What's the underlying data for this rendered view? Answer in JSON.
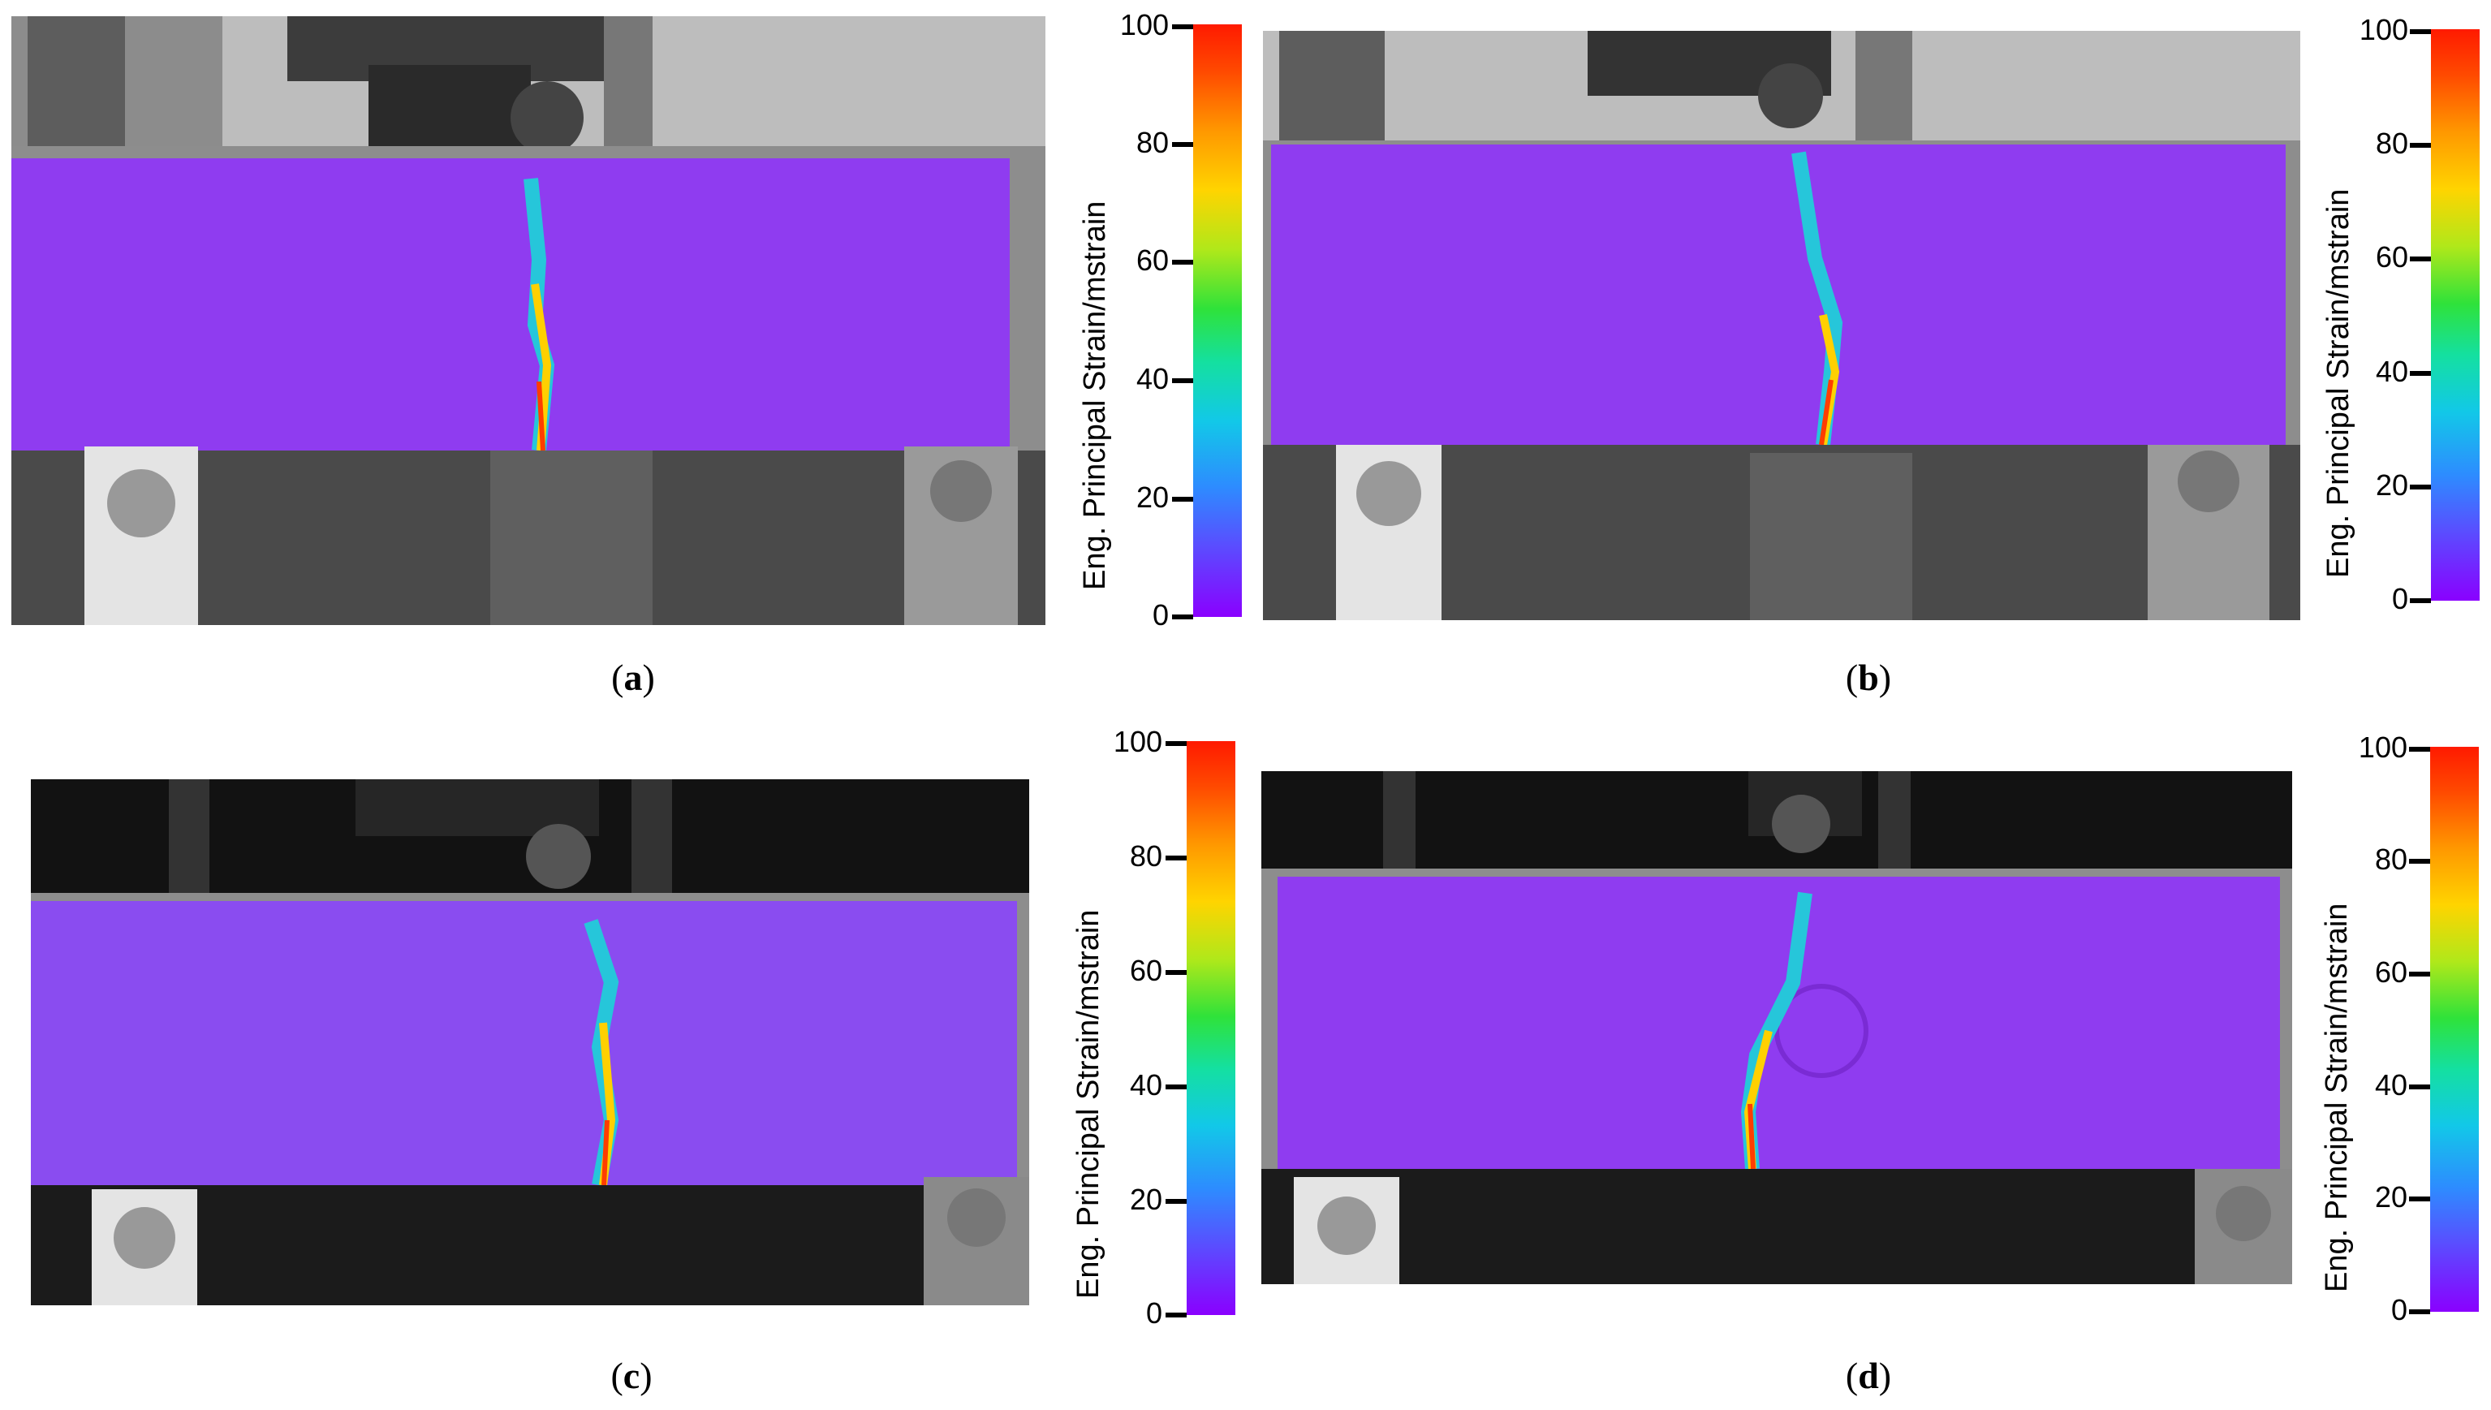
{
  "panels": [
    {
      "id": "a",
      "caption_open": "(",
      "caption_letter": "a",
      "caption_close": ")",
      "colorbar": {
        "title": "Eng. Principal Strain/mstrain",
        "ticks": [
          "100",
          "80",
          "60",
          "40",
          "20",
          "0"
        ]
      }
    },
    {
      "id": "b",
      "caption_open": "(",
      "caption_letter": "b",
      "caption_close": ")",
      "colorbar": {
        "title": "Eng. Principal Strain/mstrain",
        "ticks": [
          "100",
          "80",
          "60",
          "40",
          "20",
          "0"
        ]
      }
    },
    {
      "id": "c",
      "caption_open": "(",
      "caption_letter": "c",
      "caption_close": ")",
      "colorbar": {
        "title": "Eng. Principal Strain/mstrain",
        "ticks": [
          "100",
          "80",
          "60",
          "40",
          "20",
          "0"
        ]
      }
    },
    {
      "id": "d",
      "caption_open": "(",
      "caption_letter": "d",
      "caption_close": ")",
      "colorbar": {
        "title": "Eng. Principal Strain/mstrain",
        "ticks": [
          "100",
          "80",
          "60",
          "40",
          "20",
          "0"
        ]
      }
    }
  ],
  "colors": {
    "strain_low": "#8a2be2",
    "strain_high": "#ff1a00",
    "background": "#ffffff"
  }
}
